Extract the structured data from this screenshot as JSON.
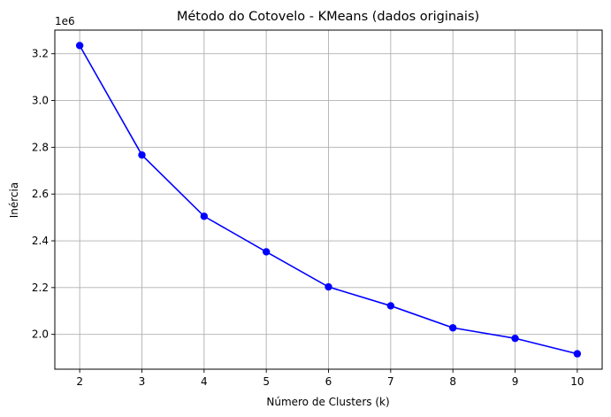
{
  "chart_data": {
    "type": "line",
    "title": "Método do Cotovelo - KMeans (dados originais)",
    "xlabel": "Número de Clusters (k)",
    "ylabel": "Inércia",
    "y_offset_text": "1e6",
    "x": [
      2,
      3,
      4,
      5,
      6,
      7,
      8,
      9,
      10
    ],
    "series": [
      {
        "values": [
          3235000,
          2767000,
          2505000,
          2353000,
          2203000,
          2122000,
          2028000,
          1983000,
          1917000
        ],
        "color": "#0000ff",
        "marker": "circle"
      }
    ],
    "xlim": [
      1.6,
      10.4
    ],
    "ylim": [
      1.8511,
      3.3011
    ],
    "x_ticks": [
      2,
      3,
      4,
      5,
      6,
      7,
      8,
      9,
      10
    ],
    "x_tick_labels": [
      "2",
      "3",
      "4",
      "5",
      "6",
      "7",
      "8",
      "9",
      "10"
    ],
    "y_ticks": [
      2.0,
      2.2,
      2.4,
      2.6,
      2.8,
      3.0,
      3.2
    ],
    "y_tick_labels": [
      "2.0",
      "2.2",
      "2.4",
      "2.6",
      "2.8",
      "3.0",
      "3.2"
    ],
    "y_tick_scale": 1000000,
    "grid": true,
    "legend": "none"
  }
}
